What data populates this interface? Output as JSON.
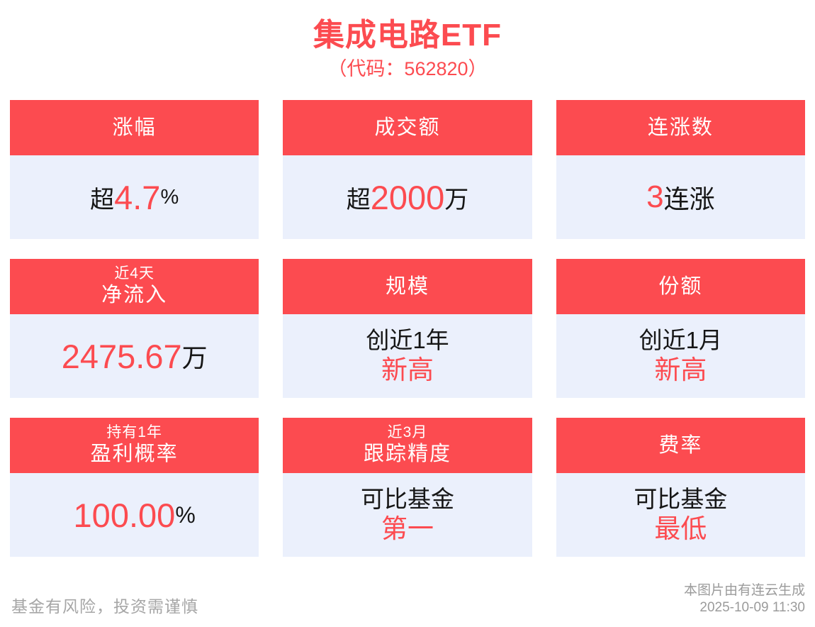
{
  "title": "集成电路ETF",
  "subtitle": "（代码：562820）",
  "colors": {
    "accent_red": "#FC4B50",
    "card_body_bg": "#EBF0FC",
    "text_dark": "#161616",
    "footer_gray": "#A6A6A6"
  },
  "cards": [
    {
      "header": "涨幅",
      "value_prefix": "超",
      "value_main": "4.7",
      "value_suffix": "%"
    },
    {
      "header": "成交额",
      "value_prefix": "超",
      "value_main": "2000",
      "value_suffix": "万"
    },
    {
      "header": "连涨数",
      "value_main": "3",
      "value_suffix": "连涨"
    },
    {
      "header_top": "近4天",
      "header": "净流入",
      "value_main": "2475.67",
      "value_suffix": "万"
    },
    {
      "header": "规模",
      "line1": "创近1年",
      "line2": "新高"
    },
    {
      "header": "份额",
      "line1": "创近1月",
      "line2": "新高"
    },
    {
      "header_top": "持有1年",
      "header": "盈利概率",
      "value_main": "100.00",
      "value_suffix": "%"
    },
    {
      "header_top": "近3月",
      "header": "跟踪精度",
      "line1": "可比基金",
      "line2": "第一"
    },
    {
      "header": "费率",
      "line1": "可比基金",
      "line2": "最低"
    }
  ],
  "footer": {
    "disclaimer": "基金有风险，投资需谨慎",
    "source": "本图片由有连云生成",
    "timestamp": "2025-10-09 11:30"
  },
  "chart_data": {
    "type": "table",
    "title": "集成电路ETF（代码：562820）",
    "columns": [
      "指标",
      "数值"
    ],
    "rows": [
      [
        "涨幅",
        "超4.7%"
      ],
      [
        "成交额",
        "超2000万"
      ],
      [
        "连涨数",
        "3连涨"
      ],
      [
        "近4天净流入",
        "2475.67万"
      ],
      [
        "规模",
        "创近1年新高"
      ],
      [
        "份额",
        "创近1月新高"
      ],
      [
        "持有1年盈利概率",
        "100.00%"
      ],
      [
        "近3月跟踪精度",
        "可比基金第一"
      ],
      [
        "费率",
        "可比基金最低"
      ]
    ]
  }
}
